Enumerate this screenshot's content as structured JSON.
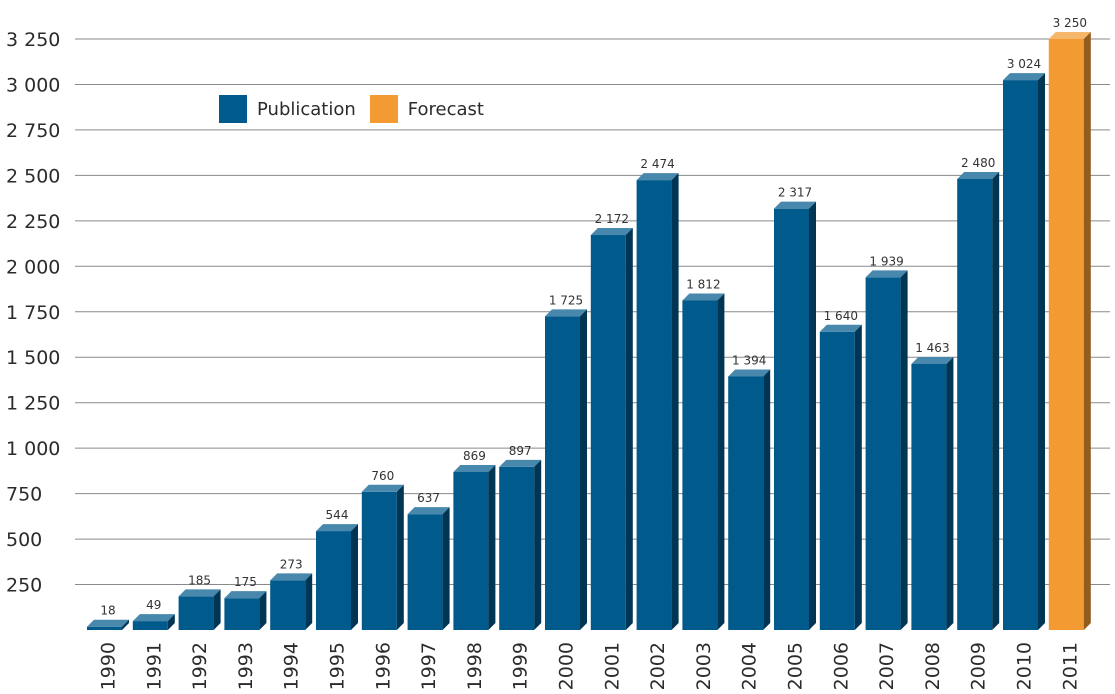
{
  "chart_data": {
    "type": "bar",
    "categories": [
      "1990",
      "1991",
      "1992",
      "1993",
      "1994",
      "1995",
      "1996",
      "1997",
      "1998",
      "1999",
      "2000",
      "2001",
      "2002",
      "2003",
      "2004",
      "2005",
      "2006",
      "2007",
      "2008",
      "2009",
      "2010",
      "2011"
    ],
    "series": [
      {
        "name": "Publication",
        "values": [
          18,
          49,
          185,
          175,
          273,
          544,
          760,
          637,
          869,
          897,
          1725,
          2172,
          2474,
          1812,
          1394,
          2317,
          1640,
          1939,
          1463,
          2480,
          3024,
          null
        ],
        "data_labels": [
          "18",
          "49",
          "185",
          "175",
          "273",
          "544",
          "760",
          "637",
          "869",
          "897",
          "1 725",
          "2 172",
          "2 474",
          "1 812",
          "1 394",
          "2 317",
          "1 640",
          "1 939",
          "1 463",
          "2 480",
          "3 024",
          ""
        ]
      },
      {
        "name": "Forecast",
        "values": [
          null,
          null,
          null,
          null,
          null,
          null,
          null,
          null,
          null,
          null,
          null,
          null,
          null,
          null,
          null,
          null,
          null,
          null,
          null,
          null,
          null,
          3250
        ],
        "data_labels": [
          "",
          "",
          "",
          "",
          "",
          "",
          "",
          "",
          "",
          "",
          "",
          "",
          "",
          "",
          "",
          "",
          "",
          "",
          "",
          "",
          "",
          "3 250"
        ]
      }
    ],
    "yticks": [
      250,
      500,
      750,
      1000,
      1250,
      1500,
      1750,
      2000,
      2250,
      2500,
      2750,
      3000,
      3250
    ],
    "ytick_labels": [
      "250",
      "500",
      "750",
      "1 000",
      "1 250",
      "1 500",
      "1 750",
      "2 000",
      "2 250",
      "2 500",
      "2 750",
      "3 000",
      "3 250"
    ],
    "ylim": [
      0,
      3250
    ],
    "grid": true,
    "legend_position": "top-left",
    "title": "",
    "xlabel": "",
    "ylabel": ""
  },
  "colors": {
    "publication": "#005a8c",
    "forecast": "#f39a33",
    "grid": "#8a8a8a",
    "text": "#2b2b2b"
  }
}
